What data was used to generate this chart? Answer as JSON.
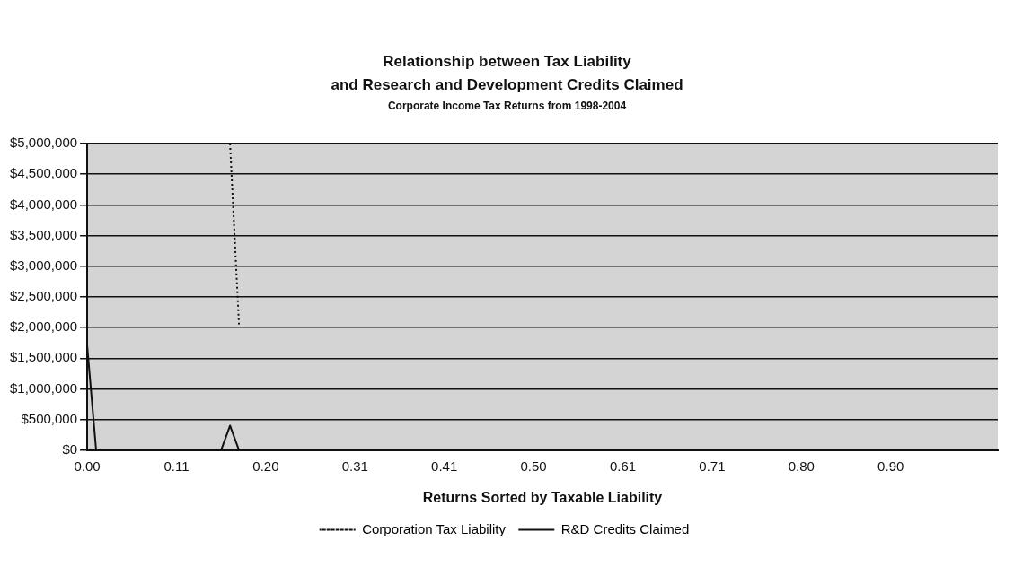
{
  "chart_data": {
    "type": "line",
    "title": "Relationship between Tax Liability\nand Research and Development Credits Claimed",
    "subtitle": "Corporate Income Tax Returns from 1998-2004",
    "xlabel": "Returns Sorted by Taxable Liability",
    "categories": [
      "0.00",
      null,
      null,
      null,
      null,
      null,
      null,
      null,
      null,
      null,
      "0.11",
      null,
      null,
      null,
      null,
      null,
      null,
      null,
      null,
      null,
      "0.20",
      null,
      null,
      null,
      null,
      null,
      null,
      null,
      null,
      null,
      "0.31",
      null,
      null,
      null,
      null,
      null,
      null,
      null,
      null,
      null,
      "0.41",
      null,
      null,
      null,
      null,
      null,
      null,
      null,
      null,
      null,
      "0.50",
      null,
      null,
      null,
      null,
      null,
      null,
      null,
      null,
      null,
      "0.61",
      null,
      null,
      null,
      null,
      null,
      null,
      null,
      null,
      null,
      "0.71",
      null,
      null,
      null,
      null,
      null,
      null,
      null,
      null,
      null,
      "0.80",
      null,
      null,
      null,
      null,
      null,
      null,
      null,
      null,
      null,
      "0.90",
      null,
      null,
      null,
      null,
      null,
      null,
      null,
      null,
      null,
      null,
      null,
      null
    ],
    "series": [
      {
        "name": "Corporation Tax Liability",
        "color": "#111111",
        "line_style": "dotted",
        "values": [
          null,
          null,
          null,
          null,
          null,
          null,
          null,
          null,
          null,
          null,
          null,
          null,
          null,
          null,
          null,
          null,
          5000000,
          2050000,
          null,
          null,
          null,
          null,
          null,
          null,
          null,
          null,
          null,
          null,
          null,
          null,
          null,
          null,
          null,
          null,
          null,
          null,
          null,
          null,
          null,
          null,
          null,
          null,
          null,
          null,
          null,
          null,
          null,
          null,
          null,
          null,
          null,
          null,
          null,
          null,
          null,
          null,
          null,
          null,
          null,
          null,
          null,
          null,
          null,
          null,
          null,
          null,
          null,
          null,
          null,
          null,
          null,
          null,
          null,
          null,
          null,
          null,
          null,
          null,
          null,
          null,
          null,
          null,
          null,
          null,
          null,
          null,
          null,
          null,
          null,
          null,
          null,
          null,
          null,
          null,
          null,
          null,
          null,
          null,
          null,
          null,
          null,
          null,
          null
        ]
      },
      {
        "name": "R&D Credits Claimed",
        "color": "#111111",
        "line_style": "solid",
        "values": [
          1700000,
          0,
          0,
          0,
          0,
          0,
          0,
          0,
          0,
          0,
          0,
          0,
          0,
          0,
          0,
          0,
          400000,
          0,
          0,
          0,
          0,
          0,
          0,
          0,
          0,
          0,
          0,
          0,
          0,
          0,
          0,
          0,
          0,
          0,
          0,
          0,
          0,
          0,
          0,
          0,
          0,
          0,
          0,
          0,
          0,
          0,
          0,
          0,
          0,
          0,
          0,
          0,
          0,
          0,
          0,
          0,
          0,
          0,
          0,
          0,
          0,
          0,
          0,
          0,
          0,
          0,
          0,
          0,
          0,
          0,
          0,
          0,
          0,
          0,
          0,
          0,
          0,
          0,
          0,
          0,
          0,
          0,
          0,
          0,
          0,
          0,
          0,
          0,
          0,
          0,
          0,
          0,
          0,
          0,
          0,
          0,
          0,
          0,
          0,
          0,
          0,
          0,
          0
        ]
      }
    ],
    "ylim": [
      0,
      5000000
    ],
    "yticks": [
      {
        "value": 0,
        "label": "$0"
      },
      {
        "value": 500000,
        "label": "$500,000"
      },
      {
        "value": 1000000,
        "label": "$1,000,000"
      },
      {
        "value": 1500000,
        "label": "$1,500,000"
      },
      {
        "value": 2000000,
        "label": "$2,000,000"
      },
      {
        "value": 2500000,
        "label": "$2,500,000"
      },
      {
        "value": 3000000,
        "label": "$3,000,000"
      },
      {
        "value": 3500000,
        "label": "$3,500,000"
      },
      {
        "value": 4000000,
        "label": "$4,000,000"
      },
      {
        "value": 4500000,
        "label": "$4,500,000"
      },
      {
        "value": 5000000,
        "label": "$5,000,000"
      }
    ],
    "grid": "y",
    "legend": "bottom",
    "marker": "none"
  }
}
